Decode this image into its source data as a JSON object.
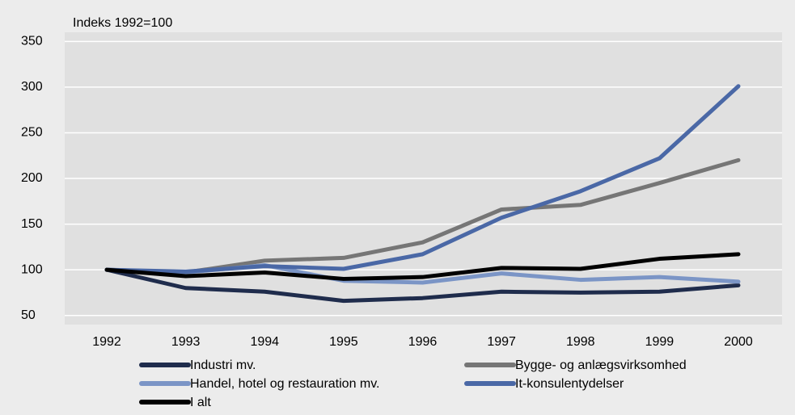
{
  "chart_data": {
    "type": "line",
    "y_label": "Indeks 1992=100",
    "x": [
      "1992",
      "1993",
      "1994",
      "1995",
      "1996",
      "1997",
      "1998",
      "1999",
      "2000"
    ],
    "series": [
      {
        "name": "Industri mv.",
        "color": "#1f2c4c",
        "values": [
          100,
          80,
          76,
          66,
          69,
          76,
          75,
          76,
          83
        ]
      },
      {
        "name": "Bygge- og anlægsvirksomhed",
        "color": "#767676",
        "values": [
          100,
          97,
          110,
          113,
          130,
          166,
          171,
          195,
          220
        ]
      },
      {
        "name": "Handel, hotel og restauration mv.",
        "color": "#7b95c6",
        "values": [
          100,
          97,
          105,
          88,
          86,
          96,
          89,
          92,
          87
        ]
      },
      {
        "name": "It-konsulentydelser",
        "color": "#4a68a6",
        "values": [
          100,
          98,
          104,
          101,
          117,
          157,
          186,
          222,
          301
        ]
      },
      {
        "name": "I alt",
        "color": "#000000",
        "values": [
          100,
          93,
          97,
          90,
          92,
          102,
          101,
          112,
          117
        ]
      }
    ],
    "ylim": [
      40,
      360
    ],
    "yticks": [
      50,
      100,
      150,
      200,
      250,
      300,
      350
    ],
    "grid": true
  }
}
